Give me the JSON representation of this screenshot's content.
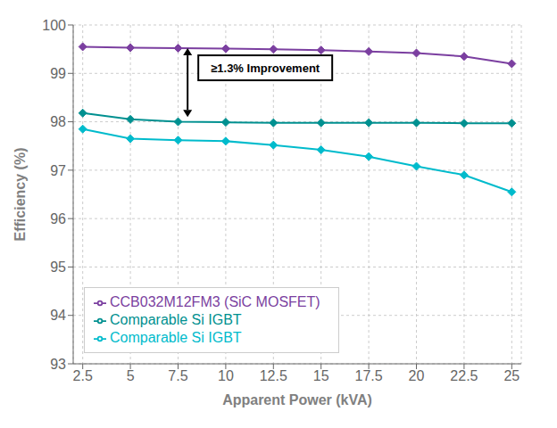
{
  "chart_data": {
    "type": "line",
    "x": [
      2.5,
      5,
      7.5,
      10,
      12.5,
      15,
      17.5,
      20,
      22.5,
      25
    ],
    "series": [
      {
        "name": "CCB032M12FM3 (SiC MOSFET)",
        "color": "#7B3FA0",
        "marker": "diamond",
        "values": [
          99.55,
          99.53,
          99.52,
          99.51,
          99.5,
          99.48,
          99.45,
          99.42,
          99.35,
          99.2
        ]
      },
      {
        "name": "Comparable Si IGBT",
        "color": "#009090",
        "marker": "diamond",
        "values": [
          98.18,
          98.05,
          98.0,
          97.99,
          97.98,
          97.98,
          97.98,
          97.98,
          97.97,
          97.97
        ]
      },
      {
        "name": "Comparable Si IGBT",
        "color": "#00BBCC",
        "marker": "diamond",
        "values": [
          97.85,
          97.65,
          97.62,
          97.6,
          97.52,
          97.42,
          97.28,
          97.08,
          96.9,
          96.55
        ]
      }
    ],
    "xlabel": "Apparent Power (kVA)",
    "ylabel": "Efficiency (%)",
    "xlim": [
      2.0,
      25.5
    ],
    "ylim": [
      93,
      100
    ],
    "xticks": [
      2.5,
      5,
      7.5,
      10,
      12.5,
      15,
      17.5,
      20,
      22.5,
      25
    ],
    "yticks": [
      93,
      94,
      95,
      96,
      97,
      98,
      99,
      100
    ],
    "grid": true,
    "legend": "lower left",
    "annotations": [
      {
        "text": "≥1.3% Improvement",
        "x": 8.0,
        "y": [
          98.1,
          99.52
        ]
      }
    ]
  }
}
